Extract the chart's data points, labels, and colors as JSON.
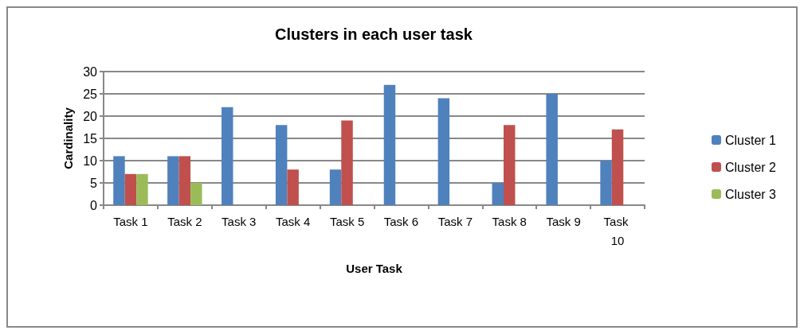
{
  "chart_data": {
    "type": "bar",
    "title": "Clusters in each user task",
    "xlabel": "User Task",
    "ylabel": "Cardinality",
    "categories": [
      "Task 1",
      "Task 2",
      "Task 3",
      "Task 4",
      "Task 5",
      "Task 6",
      "Task 7",
      "Task 8",
      "Task 9",
      "Task 10"
    ],
    "series": [
      {
        "name": "Cluster 1",
        "color": "#4f81bd",
        "values": [
          11,
          11,
          22,
          18,
          8,
          27,
          24,
          5,
          25,
          10
        ]
      },
      {
        "name": "Cluster 2",
        "color": "#c0504d",
        "values": [
          7,
          11,
          null,
          8,
          19,
          null,
          null,
          18,
          null,
          17
        ]
      },
      {
        "name": "Cluster 3",
        "color": "#9bbb59",
        "values": [
          7,
          5,
          null,
          null,
          null,
          null,
          null,
          null,
          null,
          null
        ]
      }
    ],
    "ylim": [
      0,
      30
    ],
    "yticks": [
      0,
      5,
      10,
      15,
      20,
      25,
      30
    ],
    "grid": "y",
    "legend": "right"
  }
}
